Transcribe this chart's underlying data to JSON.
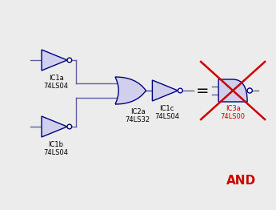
{
  "bg_color": "#ececec",
  "gate_fill": "#d0d0ee",
  "gate_edge": "#000080",
  "line_color": "#6060a0",
  "label_color": "#000000",
  "red_color": "#cc0000",
  "and_text": "AND",
  "ic1a_label": "IC1a\n74LS04",
  "ic1b_label": "IC1b\n74LS04",
  "ic2a_label": "IC2a\n74LS32",
  "ic1c_label": "IC1c\n74LS04",
  "ic3a_label": "IC3a\n74LS00",
  "figsize": [
    3.45,
    2.62
  ],
  "dpi": 100
}
